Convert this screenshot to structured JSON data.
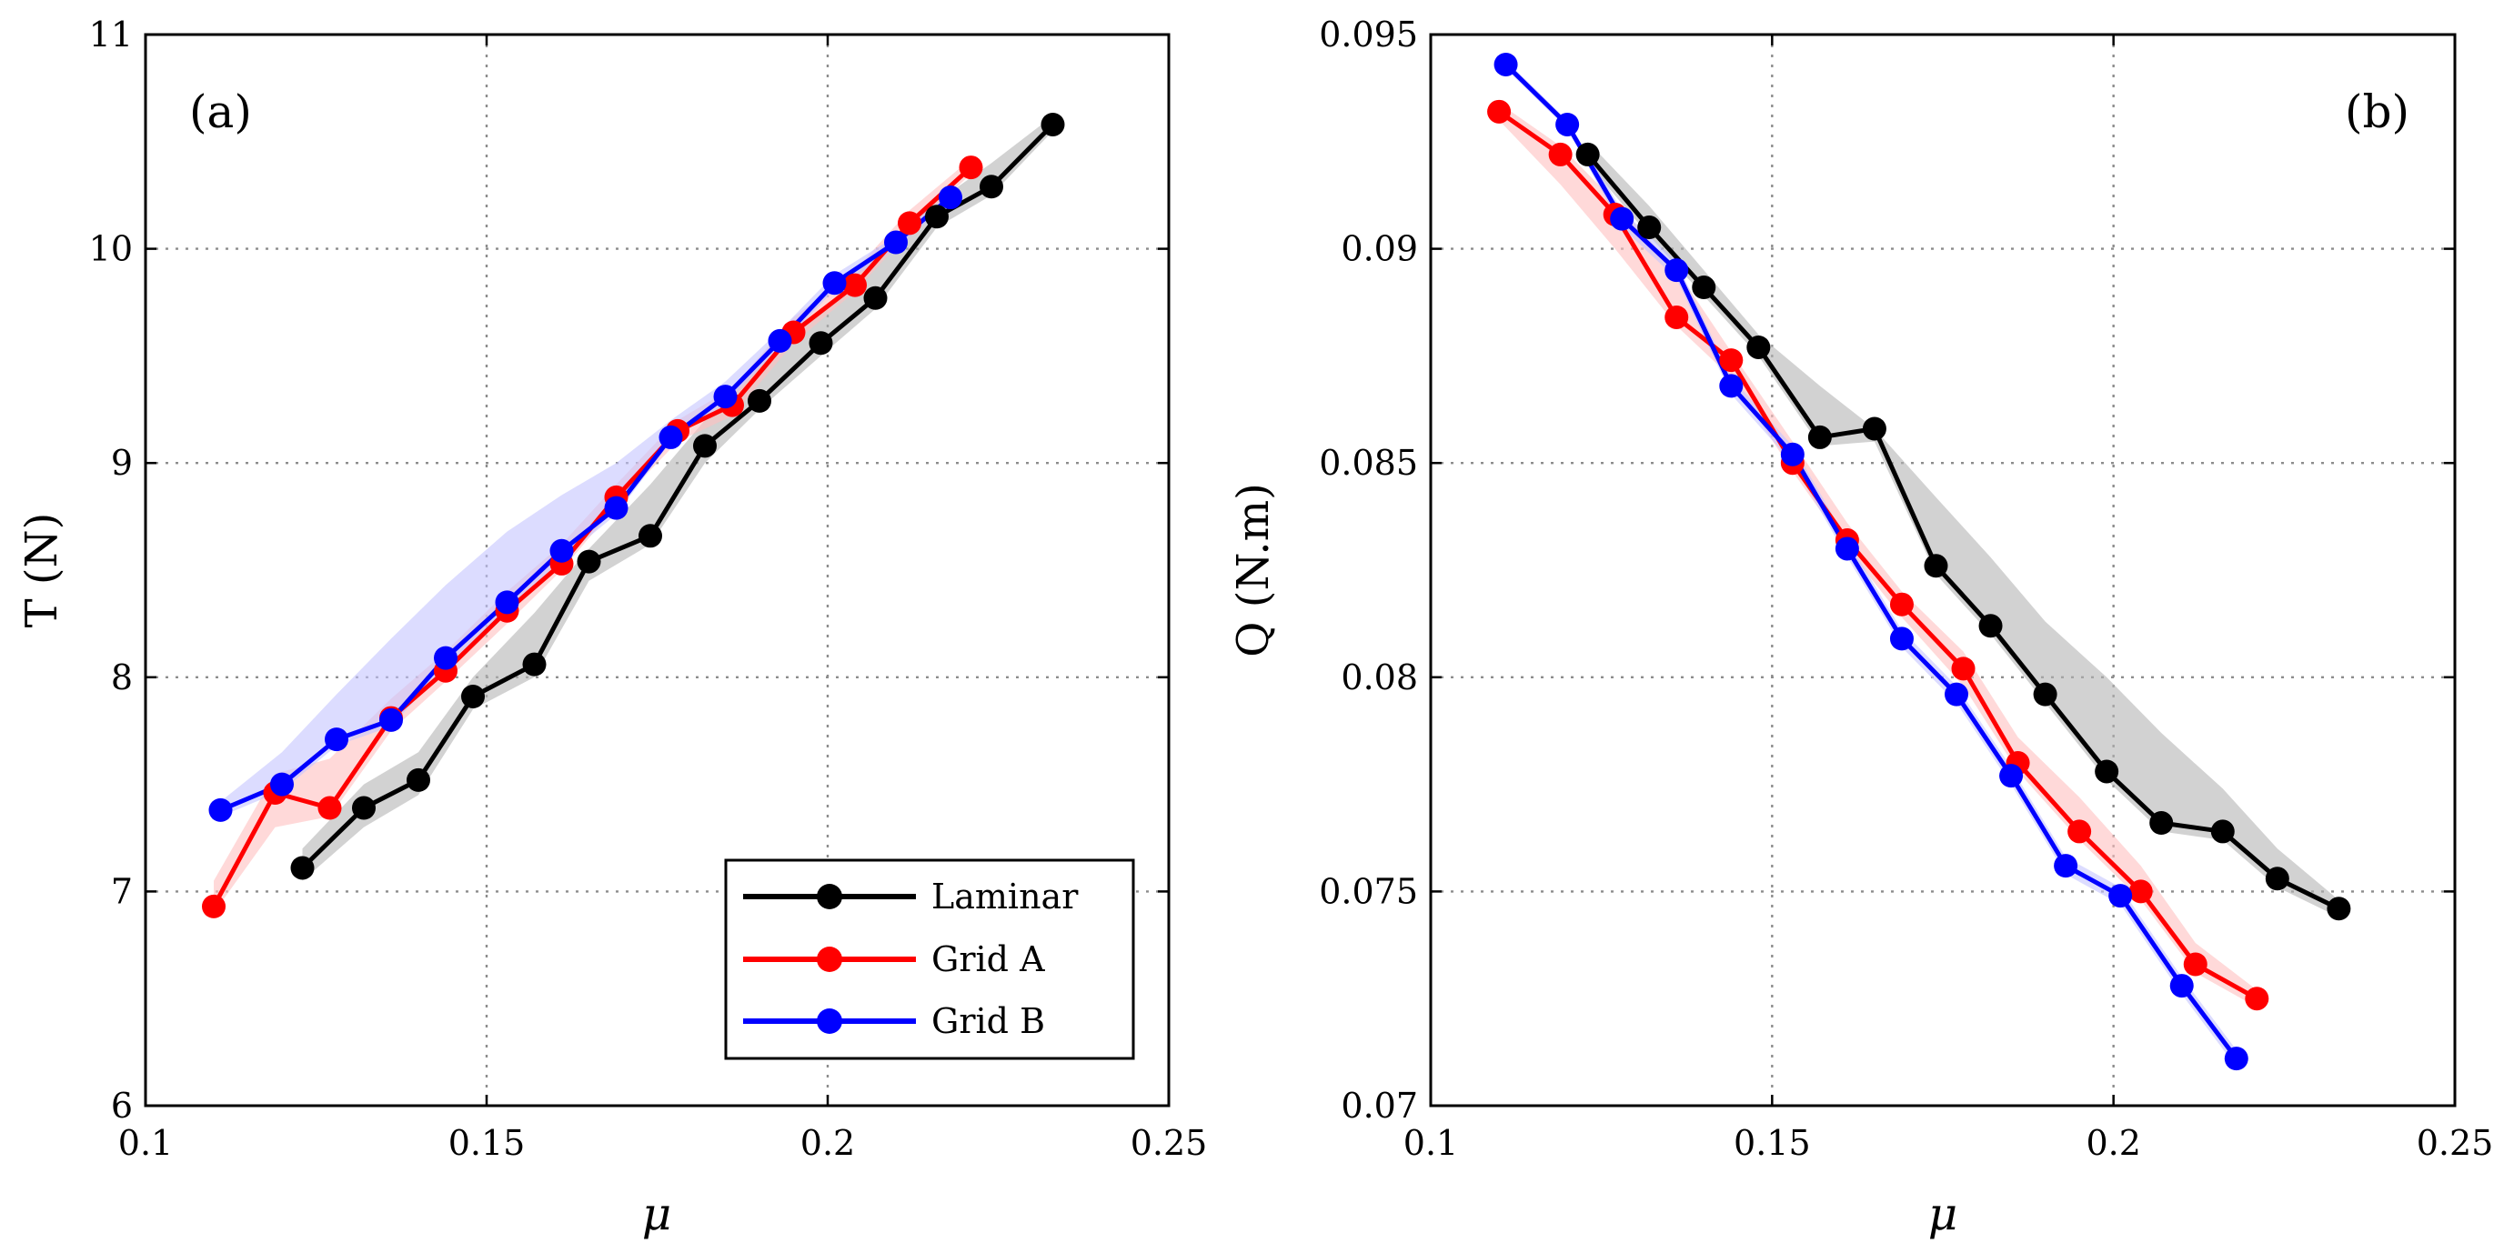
{
  "figure": {
    "legend": {
      "placement": "bottom-right",
      "panel": "a"
    }
  },
  "chart_data": [
    {
      "id": "a",
      "type": "line",
      "panel_label": "(a)",
      "xlabel": "μ",
      "ylabel": "T (N)",
      "xlim": [
        0.1,
        0.25
      ],
      "ylim": [
        6,
        11
      ],
      "xticks": [
        0.1,
        0.15,
        0.2,
        0.25
      ],
      "xtick_labels": [
        "0.1",
        "0.15",
        "0.2",
        "0.25"
      ],
      "yticks": [
        6,
        7,
        8,
        9,
        10,
        11
      ],
      "ytick_labels": [
        "6",
        "7",
        "8",
        "9",
        "10",
        "11"
      ],
      "grid": true,
      "series": [
        {
          "name": "Laminar",
          "color": "#000000",
          "band_color": "#b4b4b4",
          "x": [
            0.123,
            0.132,
            0.14,
            0.148,
            0.157,
            0.165,
            0.174,
            0.182,
            0.19,
            0.199,
            0.207,
            0.216,
            0.224,
            0.233
          ],
          "y": [
            7.11,
            7.39,
            7.52,
            7.91,
            8.06,
            8.54,
            8.66,
            9.08,
            9.29,
            9.56,
            9.77,
            10.15,
            10.29,
            10.58
          ],
          "band_upper": [
            7.2,
            7.5,
            7.65,
            8.0,
            8.3,
            8.6,
            8.9,
            9.2,
            9.45,
            9.7,
            9.98,
            10.22,
            10.4,
            10.62
          ],
          "band_lower": [
            7.05,
            7.3,
            7.45,
            7.85,
            8.0,
            8.45,
            8.62,
            9.0,
            9.25,
            9.5,
            9.72,
            10.1,
            10.25,
            10.55
          ]
        },
        {
          "name": "Grid A",
          "color": "#ff0000",
          "band_color": "#ffc0c0",
          "x": [
            0.11,
            0.119,
            0.127,
            0.136,
            0.144,
            0.153,
            0.161,
            0.169,
            0.178,
            0.186,
            0.195,
            0.204,
            0.212,
            0.221
          ],
          "y": [
            6.93,
            7.46,
            7.39,
            7.81,
            8.03,
            8.31,
            8.53,
            8.84,
            9.15,
            9.27,
            9.61,
            9.83,
            10.12,
            10.38
          ],
          "band_upper": [
            7.05,
            7.55,
            7.62,
            7.9,
            8.12,
            8.4,
            8.62,
            8.9,
            9.2,
            9.35,
            9.68,
            9.9,
            10.18,
            10.42
          ],
          "band_lower": [
            6.9,
            7.3,
            7.35,
            7.75,
            7.98,
            8.25,
            8.5,
            8.8,
            9.1,
            9.22,
            9.56,
            9.8,
            10.08,
            10.35
          ]
        },
        {
          "name": "Grid B",
          "color": "#0000ff",
          "band_color": "#c4c4ff",
          "x": [
            0.111,
            0.12,
            0.128,
            0.136,
            0.144,
            0.153,
            0.161,
            0.169,
            0.177,
            0.185,
            0.193,
            0.201,
            0.21,
            0.218
          ],
          "y": [
            7.38,
            7.5,
            7.71,
            7.8,
            8.09,
            8.35,
            8.59,
            8.79,
            9.12,
            9.31,
            9.57,
            9.84,
            10.03,
            10.24
          ],
          "band_upper": [
            7.42,
            7.65,
            7.92,
            8.18,
            8.43,
            8.68,
            8.85,
            9.0,
            9.2,
            9.38,
            9.62,
            9.88,
            10.06,
            10.26
          ],
          "band_lower": [
            7.35,
            7.47,
            7.68,
            7.77,
            8.05,
            8.31,
            8.55,
            8.76,
            9.1,
            9.28,
            9.54,
            9.81,
            10.0,
            10.22
          ]
        }
      ]
    },
    {
      "id": "b",
      "type": "line",
      "panel_label": "(b)",
      "xlabel": "μ",
      "ylabel": "Q (N.m)",
      "xlim": [
        0.1,
        0.25
      ],
      "ylim": [
        0.07,
        0.095
      ],
      "xticks": [
        0.1,
        0.15,
        0.2,
        0.25
      ],
      "xtick_labels": [
        "0.1",
        "0.15",
        "0.2",
        "0.25"
      ],
      "yticks": [
        0.07,
        0.075,
        0.08,
        0.085,
        0.09,
        0.095
      ],
      "ytick_labels": [
        "0.07",
        "0.075",
        "0.08",
        "0.085",
        "0.09",
        "0.095"
      ],
      "grid": true,
      "series": [
        {
          "name": "Laminar",
          "color": "#000000",
          "band_color": "#b4b4b4",
          "x": [
            0.123,
            0.132,
            0.14,
            0.148,
            0.157,
            0.165,
            0.174,
            0.182,
            0.19,
            0.199,
            0.207,
            0.216,
            0.224,
            0.233
          ],
          "y": [
            0.0922,
            0.0905,
            0.0891,
            0.0877,
            0.0856,
            0.0858,
            0.0826,
            0.0812,
            0.0796,
            0.0778,
            0.0766,
            0.0764,
            0.0753,
            0.0746
          ],
          "band_upper": [
            0.0925,
            0.091,
            0.0895,
            0.088,
            0.0868,
            0.0858,
            0.0842,
            0.0828,
            0.0813,
            0.08,
            0.0787,
            0.0774,
            0.076,
            0.0748
          ],
          "band_lower": [
            0.092,
            0.0903,
            0.0889,
            0.0875,
            0.0854,
            0.0855,
            0.0824,
            0.081,
            0.0794,
            0.0776,
            0.0764,
            0.0762,
            0.0751,
            0.0744
          ]
        },
        {
          "name": "Grid A",
          "color": "#ff0000",
          "band_color": "#ffc0c0",
          "x": [
            0.11,
            0.119,
            0.127,
            0.136,
            0.144,
            0.153,
            0.161,
            0.169,
            0.178,
            0.186,
            0.195,
            0.204,
            0.212,
            0.221
          ],
          "y": [
            0.0932,
            0.0922,
            0.0908,
            0.0884,
            0.0874,
            0.085,
            0.0832,
            0.0817,
            0.0802,
            0.078,
            0.0764,
            0.075,
            0.0733,
            0.0725
          ],
          "band_upper": [
            0.0934,
            0.0924,
            0.0911,
            0.0895,
            0.0876,
            0.0855,
            0.0836,
            0.082,
            0.0806,
            0.0786,
            0.0772,
            0.0756,
            0.0738,
            0.0727
          ],
          "band_lower": [
            0.093,
            0.0915,
            0.09,
            0.0882,
            0.087,
            0.0848,
            0.083,
            0.0814,
            0.0798,
            0.0778,
            0.0762,
            0.0748,
            0.0731,
            0.0723
          ]
        },
        {
          "name": "Grid B",
          "color": "#0000ff",
          "band_color": "#c4c4ff",
          "x": [
            0.111,
            0.12,
            0.128,
            0.136,
            0.144,
            0.153,
            0.161,
            0.169,
            0.177,
            0.185,
            0.193,
            0.201,
            0.21,
            0.218
          ],
          "y": [
            0.0943,
            0.0929,
            0.0907,
            0.0895,
            0.0868,
            0.0852,
            0.083,
            0.0809,
            0.0796,
            0.0777,
            0.0756,
            0.0749,
            0.0728,
            0.0711
          ],
          "band_upper": [
            0.0944,
            0.093,
            0.0909,
            0.0897,
            0.087,
            0.0854,
            0.0832,
            0.0811,
            0.0798,
            0.0779,
            0.0758,
            0.0751,
            0.073,
            0.0713
          ],
          "band_lower": [
            0.0942,
            0.0928,
            0.0905,
            0.0893,
            0.0866,
            0.085,
            0.0828,
            0.0807,
            0.0794,
            0.0775,
            0.0754,
            0.0747,
            0.0726,
            0.0709
          ]
        }
      ]
    }
  ]
}
